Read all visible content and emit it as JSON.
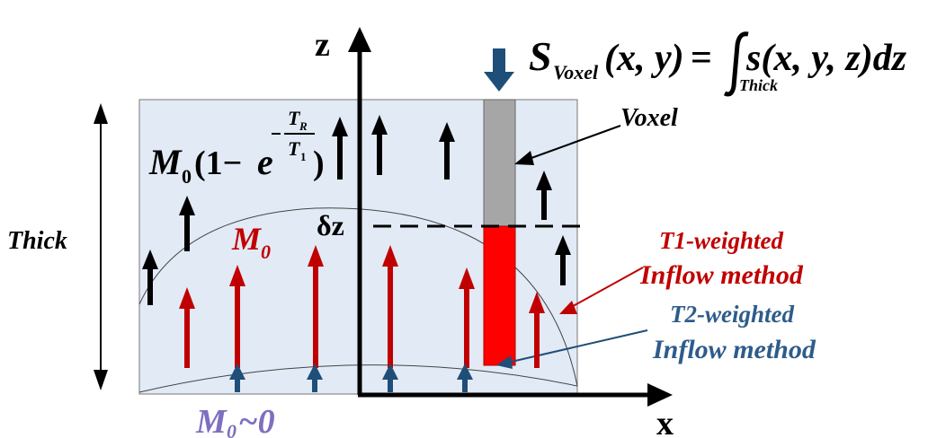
{
  "axes": {
    "z": "z",
    "x": "x"
  },
  "equation": {
    "lhs_symbol": "S",
    "lhs_subscript": "Voxel",
    "lhs_args": "(x, y)",
    "equals": "=",
    "integrand": "s(x, y, z)dz",
    "integral_subscript": "Thick"
  },
  "labels": {
    "voxel": "Voxel",
    "thick": "Thick",
    "dz": "δz",
    "m0": "M",
    "m0_sub": "0",
    "m0_approx": "M",
    "m0_approx_sub": "0",
    "m0_approx_suffix": "~0",
    "recovery": {
      "prefix": "M",
      "prefix_sub": "0",
      "open": "(1−",
      "base": "e",
      "exp_num": "T",
      "exp_num_sub": "R",
      "exp_den": "T",
      "exp_den_sub": "1",
      "close": ")"
    },
    "t1": {
      "line1": "T1-weighted",
      "line2": "Inflow method"
    },
    "t2": {
      "line1": "T2-weighted",
      "line2": "Inflow method"
    }
  },
  "colors": {
    "region": "#e2eaf5",
    "region_border": "#777777",
    "red": "#c00000",
    "black": "#000000",
    "blue": "#1f4e79",
    "voxel_gray": "#a6a6a6",
    "voxel_red": "#ff0000",
    "m0_approx": "#7f6fc0",
    "t2_text": "#2e5c8a"
  }
}
